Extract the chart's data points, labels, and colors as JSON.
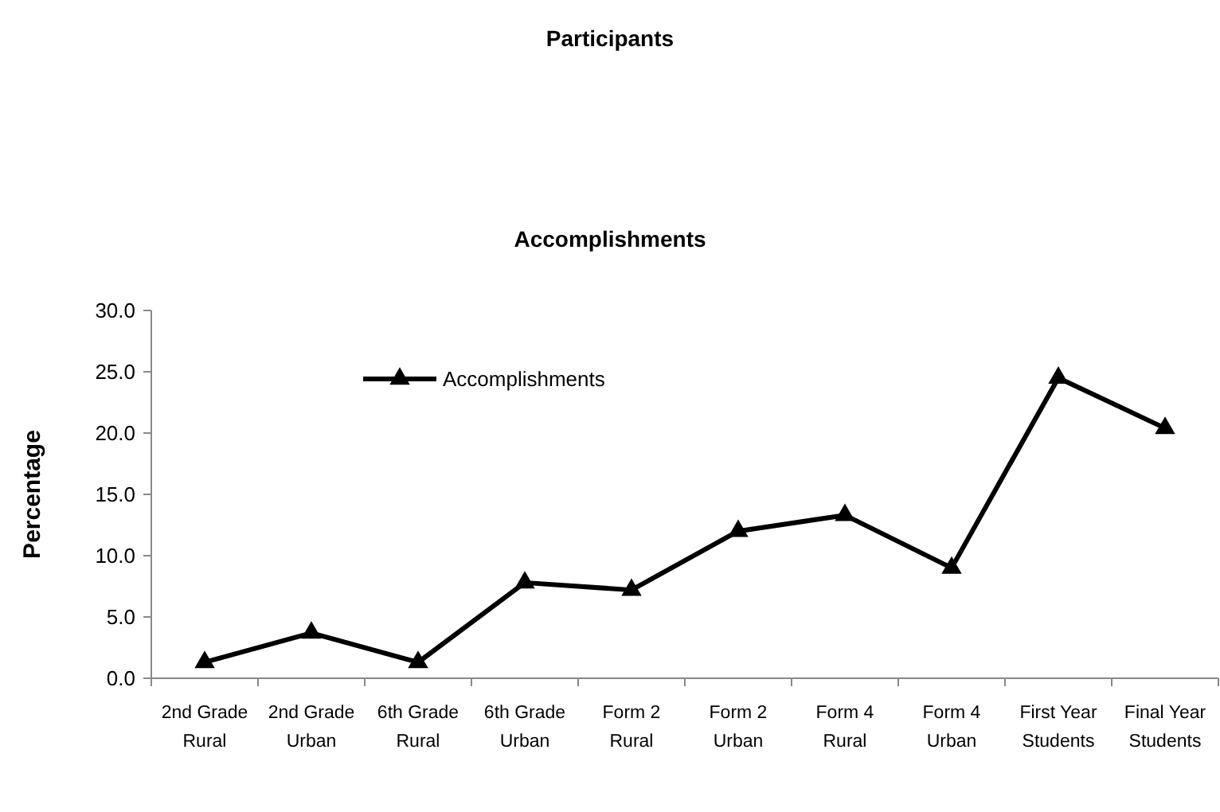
{
  "chart_data": {
    "type": "line",
    "title": "Participants",
    "subtitle": "Accomplishments",
    "ylabel": "Percentage",
    "categories": [
      "2nd Grade Rural",
      "2nd Grade Urban",
      "6th Grade Rural",
      "6th Grade Urban",
      "Form 2 Rural",
      "Form 2 Urban",
      "Form 4 Rural",
      "Form 4 Urban",
      "First Year Students",
      "Final Year Students"
    ],
    "series": [
      {
        "name": "Accomplishments",
        "color": "#000000",
        "values": [
          1.3,
          3.7,
          1.3,
          7.8,
          7.2,
          12.0,
          13.3,
          9.0,
          24.5,
          20.4
        ]
      }
    ],
    "ylim": [
      0,
      30
    ],
    "yticks": [
      {
        "value": 0,
        "label": "0.0"
      },
      {
        "value": 5,
        "label": "5.0"
      },
      {
        "value": 10,
        "label": "10.0"
      },
      {
        "value": 15,
        "label": "15.0"
      },
      {
        "value": 20,
        "label": "20.0"
      },
      {
        "value": 25,
        "label": "25.0"
      },
      {
        "value": 30,
        "label": "30.0"
      }
    ],
    "grid": false,
    "legend": "top left",
    "marker": "triangle",
    "line_style": "solid"
  }
}
